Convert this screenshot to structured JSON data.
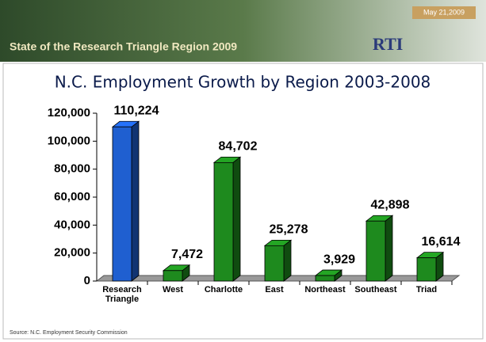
{
  "header": {
    "title": "State of the Research Triangle Region 2009",
    "date": "May 21,2009",
    "logo": "RTI"
  },
  "source": "Source: N.C. Employment Security Commission",
  "chart_data": {
    "type": "bar3d",
    "title": "N.C. Employment Growth by Region 2003-2008",
    "categories": [
      "Research Triangle",
      "West",
      "Charlotte",
      "East",
      "Northeast",
      "Southeast",
      "Triad"
    ],
    "values": [
      110224,
      7472,
      84702,
      25278,
      3929,
      42898,
      16614
    ],
    "value_labels": [
      "110,224",
      "7,472",
      "84,702",
      "25,278",
      "3,929",
      "42,898",
      "16,614"
    ],
    "colors": [
      "#1f5fd0",
      "#1e8a1e",
      "#1e8a1e",
      "#1e8a1e",
      "#1e8a1e",
      "#1e8a1e",
      "#1e8a1e"
    ],
    "ylim": [
      0,
      120000
    ],
    "yticks": [
      0,
      {
        "value": 20000,
        "label": "20,000"
      },
      {
        "value": 40000,
        "label": "40,000"
      },
      {
        "value": 60000,
        "label": "60,000"
      },
      {
        "value": 80000,
        "label": "80,000"
      },
      {
        "value": 100000,
        "label": "100,000"
      },
      {
        "value": 120000,
        "label": "120,000"
      }
    ],
    "grid": false
  }
}
